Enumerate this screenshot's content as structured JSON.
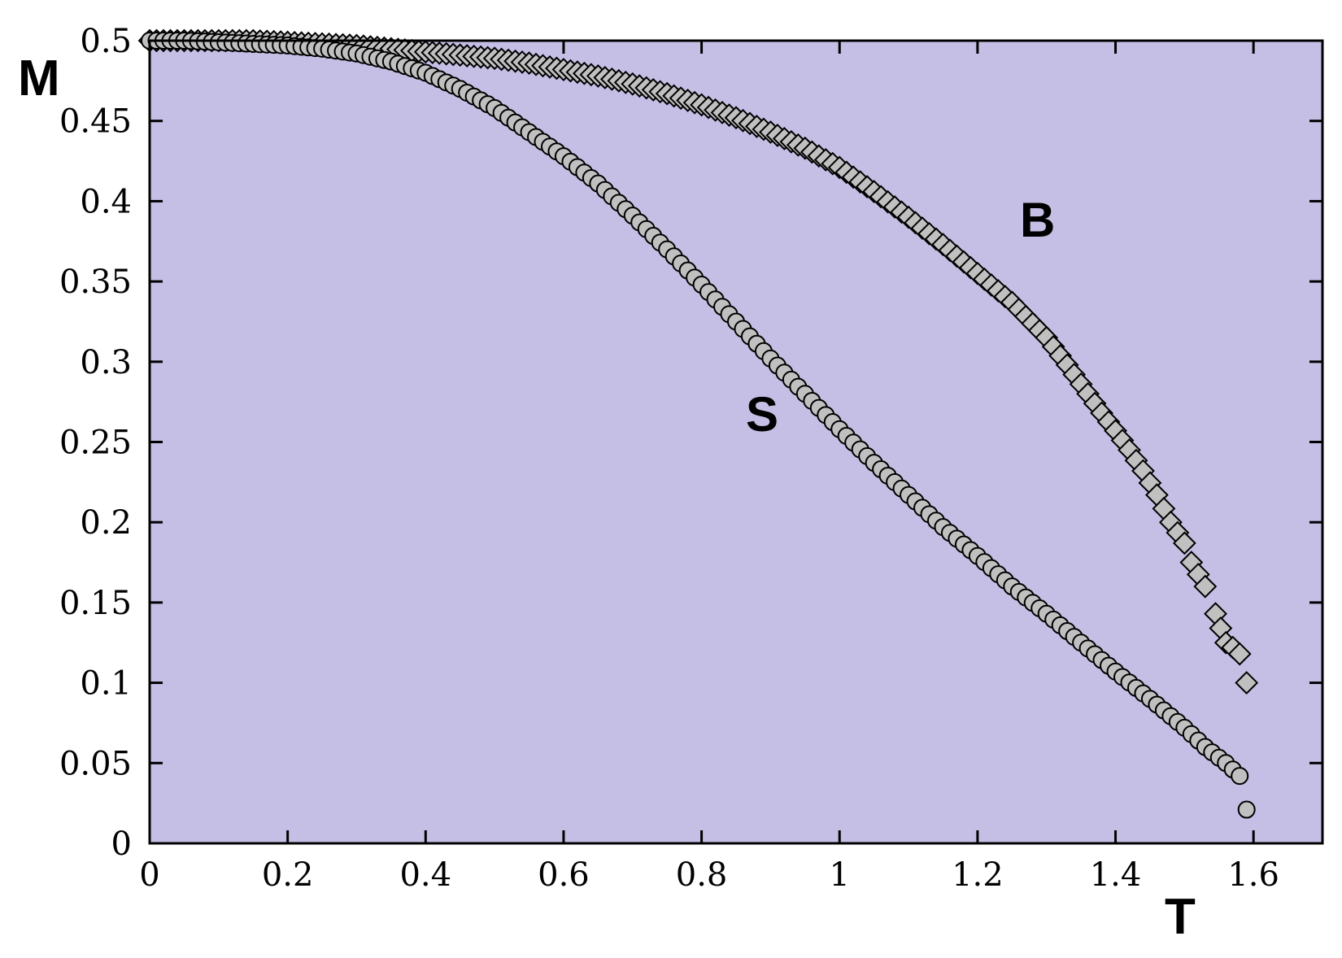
{
  "chart_data": {
    "type": "scatter",
    "xlabel": "T",
    "ylabel": "M",
    "xlim": [
      0,
      1.7
    ],
    "ylim": [
      0,
      0.5
    ],
    "xticks": [
      0,
      0.2,
      0.4,
      0.6,
      0.8,
      1,
      1.2,
      1.4,
      1.6
    ],
    "yticks": [
      0,
      0.05,
      0.1,
      0.15,
      0.2,
      0.25,
      0.3,
      0.35,
      0.4,
      0.45,
      0.5
    ],
    "grid": false,
    "plot_background": "#c5bfe5",
    "marker_fill": "#c0c0c0",
    "series": [
      {
        "name": "B",
        "marker": "diamond",
        "x": [
          0.0,
          0.05,
          0.1,
          0.15,
          0.2,
          0.25,
          0.3,
          0.35,
          0.4,
          0.45,
          0.5,
          0.55,
          0.6,
          0.65,
          0.7,
          0.75,
          0.8,
          0.85,
          0.9,
          0.95,
          1.0,
          1.05,
          1.1,
          1.15,
          1.2,
          1.25,
          1.3,
          1.33,
          1.36,
          1.38,
          1.4,
          1.42,
          1.44,
          1.46,
          1.48,
          1.5,
          1.51,
          1.53,
          1.545,
          1.56,
          1.57,
          1.58,
          1.59
        ],
        "y": [
          0.5,
          0.5,
          0.5,
          0.5,
          0.499,
          0.498,
          0.497,
          0.495,
          0.493,
          0.491,
          0.489,
          0.486,
          0.482,
          0.478,
          0.473,
          0.467,
          0.46,
          0.452,
          0.443,
          0.433,
          0.421,
          0.406,
          0.39,
          0.373,
          0.355,
          0.337,
          0.315,
          0.298,
          0.28,
          0.268,
          0.257,
          0.245,
          0.232,
          0.217,
          0.2,
          0.187,
          0.175,
          0.16,
          0.143,
          0.125,
          0.122,
          0.118,
          0.1
        ]
      },
      {
        "name": "S",
        "marker": "circle",
        "x": [
          0.0,
          0.05,
          0.1,
          0.15,
          0.2,
          0.25,
          0.3,
          0.35,
          0.4,
          0.45,
          0.5,
          0.55,
          0.6,
          0.65,
          0.7,
          0.75,
          0.8,
          0.85,
          0.9,
          0.95,
          1.0,
          1.05,
          1.1,
          1.15,
          1.2,
          1.25,
          1.3,
          1.35,
          1.4,
          1.45,
          1.5,
          1.53,
          1.56,
          1.58,
          1.59
        ],
        "y": [
          0.5,
          0.5,
          0.499,
          0.498,
          0.497,
          0.495,
          0.492,
          0.487,
          0.48,
          0.47,
          0.458,
          0.443,
          0.428,
          0.411,
          0.391,
          0.37,
          0.348,
          0.325,
          0.302,
          0.28,
          0.258,
          0.237,
          0.217,
          0.197,
          0.179,
          0.16,
          0.143,
          0.125,
          0.107,
          0.09,
          0.072,
          0.06,
          0.05,
          0.042,
          0.021
        ]
      }
    ]
  }
}
